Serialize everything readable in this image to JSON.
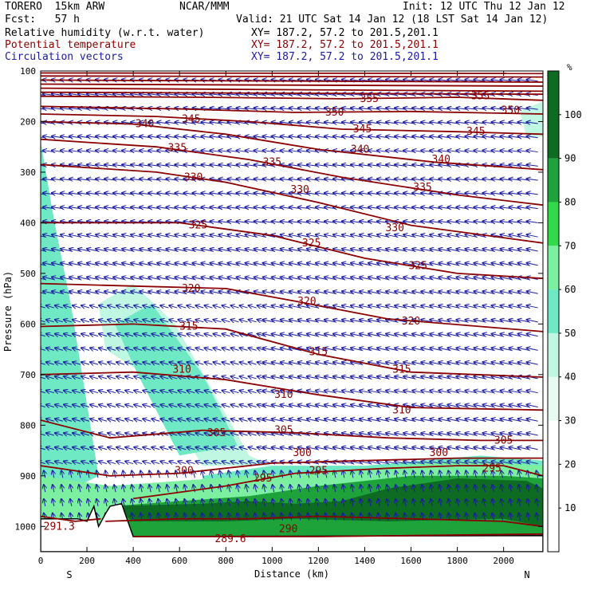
{
  "header": {
    "model": "TORERO  15km ARW",
    "center": "NCAR/MMM",
    "init": "Init: 12 UTC Thu 12 Jan 12",
    "fcst": "Fcst:   57 h",
    "valid": "Valid: 21 UTC Sat 14 Jan 12 (18 LST Sat 14 Jan 12)",
    "field1": "Relative humidity (w.r.t. water)",
    "field2": "Potential temperature",
    "field3": "Circulation vectors",
    "xy1": "XY= 187.2, 57.2 to 201.5,201.1",
    "xy2": "XY= 187.2, 57.2 to 201.5,201.1",
    "xy3": "XY= 187.2, 57.2 to 201.5,201.1"
  },
  "colors": {
    "theta": "#8b0000",
    "vectors": "#1a1aa0",
    "terrain": "#000000"
  },
  "chart_data": {
    "type": "heatmap",
    "xlabel": "Distance (km)",
    "ylabel": "Pressure (hPa)",
    "x_ticks": [
      "0",
      "200",
      "400",
      "600",
      "800",
      "1000",
      "1200",
      "1400",
      "1600",
      "1800",
      "2000"
    ],
    "y_ticks": [
      "100",
      "200",
      "300",
      "400",
      "500",
      "600",
      "700",
      "800",
      "900",
      "1000"
    ],
    "xlim": [
      0,
      2170
    ],
    "ylim": [
      1050,
      100
    ],
    "x_end_labels": {
      "left": "S",
      "right": "N"
    },
    "colorbar": {
      "unit": "%",
      "ticks": [
        "10",
        "20",
        "30",
        "40",
        "50",
        "60",
        "70",
        "80",
        "90",
        "100"
      ],
      "levels": [
        {
          "from": 0,
          "to": 30,
          "color": "#ffffff"
        },
        {
          "from": 30,
          "to": 40,
          "color": "#e8fbf3"
        },
        {
          "from": 40,
          "to": 50,
          "color": "#bff7e2"
        },
        {
          "from": 50,
          "to": 60,
          "color": "#6fe8c4"
        },
        {
          "from": 60,
          "to": 70,
          "color": "#7cf0a0"
        },
        {
          "from": 70,
          "to": 80,
          "color": "#33d94a"
        },
        {
          "from": 80,
          "to": 90,
          "color": "#1ea33a"
        },
        {
          "from": 90,
          "to": 110,
          "color": "#0e6b22"
        }
      ]
    },
    "rh_regions": [
      {
        "level": 50,
        "points": [
          [
            0,
            240
          ],
          [
            60,
            400
          ],
          [
            130,
            560
          ],
          [
            250,
            900
          ],
          [
            120,
            930
          ],
          [
            0,
            950
          ]
        ]
      },
      {
        "level": 40,
        "points": [
          [
            250,
            560
          ],
          [
            400,
            520
          ],
          [
            580,
            600
          ],
          [
            900,
            860
          ],
          [
            1000,
            880
          ],
          [
            700,
            880
          ],
          [
            450,
            700
          ],
          [
            280,
            650
          ]
        ]
      },
      {
        "level": 50,
        "points": [
          [
            320,
            600
          ],
          [
            480,
            560
          ],
          [
            700,
            700
          ],
          [
            850,
            840
          ],
          [
            600,
            860
          ],
          [
            420,
            700
          ]
        ]
      },
      {
        "level": 40,
        "points": [
          [
            2070,
            180
          ],
          [
            2170,
            160
          ],
          [
            2170,
            230
          ],
          [
            2100,
            230
          ]
        ]
      },
      {
        "level": 50,
        "points": [
          [
            700,
            900
          ],
          [
            1000,
            880
          ],
          [
            1400,
            880
          ],
          [
            1900,
            860
          ],
          [
            2170,
            870
          ],
          [
            2170,
            960
          ],
          [
            700,
            960
          ]
        ]
      },
      {
        "level": 60,
        "points": [
          [
            0,
            900
          ],
          [
            300,
            920
          ],
          [
            900,
            900
          ],
          [
            1300,
            890
          ],
          [
            1800,
            870
          ],
          [
            2170,
            880
          ],
          [
            2170,
            1020
          ],
          [
            0,
            1020
          ]
        ]
      },
      {
        "level": 80,
        "points": [
          [
            300,
            960
          ],
          [
            900,
            940
          ],
          [
            1200,
            920
          ],
          [
            1600,
            900
          ],
          [
            2000,
            900
          ],
          [
            2170,
            905
          ],
          [
            2170,
            1020
          ],
          [
            300,
            1020
          ]
        ]
      },
      {
        "level": 90,
        "points": [
          [
            300,
            960
          ],
          [
            700,
            955
          ],
          [
            900,
            950
          ],
          [
            1100,
            955
          ],
          [
            1300,
            950
          ],
          [
            1500,
            925
          ],
          [
            1800,
            905
          ],
          [
            2100,
            910
          ],
          [
            2170,
            925
          ],
          [
            2170,
            1000
          ],
          [
            2000,
            985
          ],
          [
            1500,
            990
          ],
          [
            1100,
            985
          ],
          [
            800,
            990
          ],
          [
            400,
            990
          ]
        ]
      }
    ],
    "theta_contours": [
      {
        "label": "289.6",
        "label_at": [
          820,
          1025
        ],
        "points": [
          [
            400,
            1020
          ],
          [
            800,
            1020
          ],
          [
            1200,
            1020
          ],
          [
            2170,
            1015
          ]
        ]
      },
      {
        "label": "290",
        "label_at": [
          1070,
          1005
        ],
        "points": [
          [
            280,
            990
          ],
          [
            600,
            985
          ],
          [
            900,
            985
          ],
          [
            1200,
            980
          ],
          [
            1600,
            985
          ],
          [
            2000,
            990
          ],
          [
            2170,
            1000
          ]
        ]
      },
      {
        "label": "291.3",
        "label_at": [
          80,
          1000
        ],
        "points": [
          [
            0,
            980
          ],
          [
            150,
            990
          ],
          [
            260,
            985
          ]
        ]
      },
      {
        "label": "295",
        "label_at": [
          1200,
          890
        ],
        "points": [
          [
            400,
            945
          ],
          [
            800,
            920
          ],
          [
            1100,
            895
          ],
          [
            1500,
            885
          ],
          [
            1800,
            880
          ],
          [
            2000,
            880
          ],
          [
            2170,
            900
          ]
        ]
      },
      {
        "label": "295",
        "label_at": [
          1950,
          885
        ],
        "points": []
      },
      {
        "label": "295",
        "label_at": [
          960,
          905
        ],
        "points": []
      },
      {
        "label": "300",
        "label_at": [
          620,
          890
        ],
        "points": [
          [
            0,
            880
          ],
          [
            300,
            900
          ],
          [
            600,
            895
          ],
          [
            1000,
            875
          ],
          [
            1400,
            870
          ],
          [
            1800,
            865
          ],
          [
            2170,
            865
          ]
        ]
      },
      {
        "label": "300",
        "label_at": [
          1130,
          855
        ],
        "points": []
      },
      {
        "label": "300",
        "label_at": [
          1720,
          855
        ],
        "points": []
      },
      {
        "label": "305",
        "label_at": [
          760,
          815
        ],
        "points": [
          [
            0,
            790
          ],
          [
            300,
            825
          ],
          [
            700,
            810
          ],
          [
            1100,
            815
          ],
          [
            1500,
            825
          ],
          [
            1900,
            830
          ],
          [
            2170,
            830
          ]
        ]
      },
      {
        "label": "305",
        "label_at": [
          1050,
          810
        ],
        "points": []
      },
      {
        "label": "305",
        "label_at": [
          2000,
          830
        ],
        "points": []
      },
      {
        "label": "310",
        "label_at": [
          610,
          690
        ],
        "points": [
          [
            0,
            700
          ],
          [
            400,
            695
          ],
          [
            800,
            710
          ],
          [
            1200,
            740
          ],
          [
            1600,
            765
          ],
          [
            2170,
            770
          ]
        ]
      },
      {
        "label": "310",
        "label_at": [
          1050,
          740
        ],
        "points": []
      },
      {
        "label": "310",
        "label_at": [
          1560,
          770
        ],
        "points": []
      },
      {
        "label": "315",
        "label_at": [
          640,
          605
        ],
        "points": [
          [
            0,
            605
          ],
          [
            400,
            600
          ],
          [
            800,
            610
          ],
          [
            1200,
            660
          ],
          [
            1600,
            695
          ],
          [
            2170,
            705
          ]
        ]
      },
      {
        "label": "315",
        "label_at": [
          1200,
          655
        ],
        "points": []
      },
      {
        "label": "315",
        "label_at": [
          1560,
          690
        ],
        "points": []
      },
      {
        "label": "320",
        "label_at": [
          650,
          530
        ],
        "points": [
          [
            0,
            520
          ],
          [
            400,
            525
          ],
          [
            800,
            530
          ],
          [
            1100,
            555
          ],
          [
            1500,
            590
          ],
          [
            2170,
            615
          ]
        ]
      },
      {
        "label": "320",
        "label_at": [
          1150,
          555
        ],
        "points": []
      },
      {
        "label": "320",
        "label_at": [
          1600,
          595
        ],
        "points": []
      },
      {
        "label": "325",
        "label_at": [
          680,
          405
        ],
        "points": [
          [
            0,
            400
          ],
          [
            600,
            400
          ],
          [
            1000,
            425
          ],
          [
            1400,
            470
          ],
          [
            1800,
            500
          ],
          [
            2170,
            510
          ]
        ]
      },
      {
        "label": "325",
        "label_at": [
          1170,
          440
        ],
        "points": []
      },
      {
        "label": "325",
        "label_at": [
          1630,
          485
        ],
        "points": []
      },
      {
        "label": "330",
        "label_at": [
          660,
          310
        ],
        "points": [
          [
            0,
            285
          ],
          [
            500,
            300
          ],
          [
            800,
            320
          ],
          [
            1200,
            360
          ],
          [
            1600,
            405
          ],
          [
            2170,
            440
          ]
        ]
      },
      {
        "label": "330",
        "label_at": [
          1120,
          335
        ],
        "points": []
      },
      {
        "label": "330",
        "label_at": [
          1530,
          410
        ],
        "points": []
      },
      {
        "label": "335",
        "label_at": [
          590,
          252
        ],
        "points": [
          [
            0,
            235
          ],
          [
            500,
            250
          ],
          [
            900,
            275
          ],
          [
            1300,
            310
          ],
          [
            1800,
            345
          ],
          [
            2170,
            365
          ]
        ]
      },
      {
        "label": "335",
        "label_at": [
          1000,
          280
        ],
        "points": []
      },
      {
        "label": "335",
        "label_at": [
          1650,
          330
        ],
        "points": []
      },
      {
        "label": "340",
        "label_at": [
          450,
          205
        ],
        "points": [
          [
            0,
            200
          ],
          [
            400,
            205
          ],
          [
            800,
            225
          ],
          [
            1200,
            255
          ],
          [
            1700,
            280
          ],
          [
            2170,
            295
          ]
        ]
      },
      {
        "label": "340",
        "label_at": [
          1380,
          255
        ],
        "points": []
      },
      {
        "label": "340",
        "label_at": [
          1730,
          275
        ],
        "points": []
      },
      {
        "label": "345",
        "label_at": [
          650,
          195
        ],
        "points": [
          [
            0,
            185
          ],
          [
            500,
            190
          ],
          [
            900,
            200
          ],
          [
            1300,
            215
          ],
          [
            1800,
            220
          ],
          [
            2170,
            225
          ]
        ]
      },
      {
        "label": "345",
        "label_at": [
          1390,
          215
        ],
        "points": []
      },
      {
        "label": "345",
        "label_at": [
          1880,
          220
        ],
        "points": []
      },
      {
        "label": "350",
        "label_at": [
          1270,
          182
        ],
        "points": [
          [
            0,
            170
          ],
          [
            600,
            175
          ],
          [
            1100,
            182
          ],
          [
            1600,
            180
          ],
          [
            2170,
            185
          ]
        ]
      },
      {
        "label": "350",
        "label_at": [
          2030,
          178
        ],
        "points": []
      },
      {
        "label": "355",
        "label_at": [
          1420,
          155
        ],
        "points": [
          [
            0,
            150
          ],
          [
            700,
            152
          ],
          [
            1300,
            155
          ],
          [
            1800,
            152
          ],
          [
            2170,
            158
          ]
        ]
      },
      {
        "label": "355",
        "label_at": [
          1900,
          150
        ],
        "points": []
      },
      {
        "label": "",
        "label_at": null,
        "points": [
          [
            0,
            110
          ],
          [
            2170,
            112
          ]
        ]
      },
      {
        "label": "",
        "label_at": null,
        "points": [
          [
            0,
            118
          ],
          [
            2170,
            122
          ]
        ]
      },
      {
        "label": "",
        "label_at": null,
        "points": [
          [
            0,
            126
          ],
          [
            2170,
            130
          ]
        ]
      },
      {
        "label": "",
        "label_at": null,
        "points": [
          [
            0,
            134
          ],
          [
            2170,
            140
          ]
        ]
      },
      {
        "label": "",
        "label_at": null,
        "points": [
          [
            0,
            142
          ],
          [
            2170,
            146
          ]
        ]
      },
      {
        "label": "",
        "label_at": null,
        "points": [
          [
            0,
            104
          ],
          [
            2170,
            105
          ]
        ]
      }
    ],
    "terrain": [
      [
        0,
        985
      ],
      [
        160,
        985
      ],
      [
        200,
        990
      ],
      [
        230,
        960
      ],
      [
        250,
        1000
      ],
      [
        280,
        975
      ],
      [
        300,
        960
      ],
      [
        350,
        955
      ],
      [
        400,
        1020
      ],
      [
        2170,
        1018
      ],
      [
        2170,
        1050
      ],
      [
        0,
        1050
      ]
    ]
  }
}
